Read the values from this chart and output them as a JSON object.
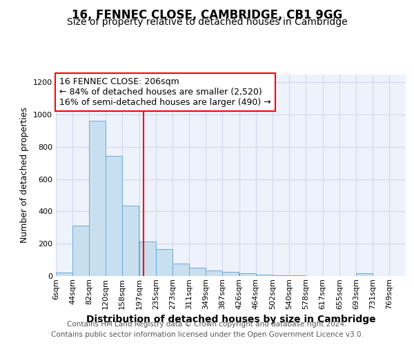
{
  "title1": "16, FENNEC CLOSE, CAMBRIDGE, CB1 9GG",
  "title2": "Size of property relative to detached houses in Cambridge",
  "xlabel": "Distribution of detached houses by size in Cambridge",
  "ylabel": "Number of detached properties",
  "bin_labels": [
    "6sqm",
    "44sqm",
    "82sqm",
    "120sqm",
    "158sqm",
    "197sqm",
    "235sqm",
    "273sqm",
    "311sqm",
    "349sqm",
    "387sqm",
    "426sqm",
    "464sqm",
    "502sqm",
    "540sqm",
    "578sqm",
    "617sqm",
    "655sqm",
    "693sqm",
    "731sqm",
    "769sqm"
  ],
  "bin_edges": [
    6,
    44,
    82,
    120,
    158,
    197,
    235,
    273,
    311,
    349,
    387,
    426,
    464,
    502,
    540,
    578,
    617,
    655,
    693,
    731,
    769
  ],
  "bar_heights": [
    20,
    310,
    960,
    745,
    435,
    215,
    165,
    75,
    50,
    35,
    25,
    15,
    10,
    5,
    5,
    0,
    0,
    0,
    15,
    0,
    0
  ],
  "bar_color": "#c8dff0",
  "bar_edge_color": "#6aaad4",
  "red_line_x": 206,
  "annotation_text": "16 FENNEC CLOSE: 206sqm\n← 84% of detached houses are smaller (2,520)\n16% of semi-detached houses are larger (490) →",
  "annotation_box_color": "white",
  "annotation_box_edge_color": "red",
  "footnote": "Contains HM Land Registry data © Crown copyright and database right 2024.\nContains public sector information licensed under the Open Government Licence v3.0.",
  "ylim": [
    0,
    1250
  ],
  "yticks": [
    0,
    200,
    400,
    600,
    800,
    1000,
    1200
  ],
  "background_color": "#ffffff",
  "plot_bg_color": "#eef2fb",
  "grid_color": "#d0d8ee",
  "title1_fontsize": 12,
  "title2_fontsize": 10,
  "xlabel_fontsize": 10,
  "ylabel_fontsize": 9,
  "footnote_fontsize": 7.5,
  "annotation_fontsize": 9,
  "tick_fontsize": 8
}
